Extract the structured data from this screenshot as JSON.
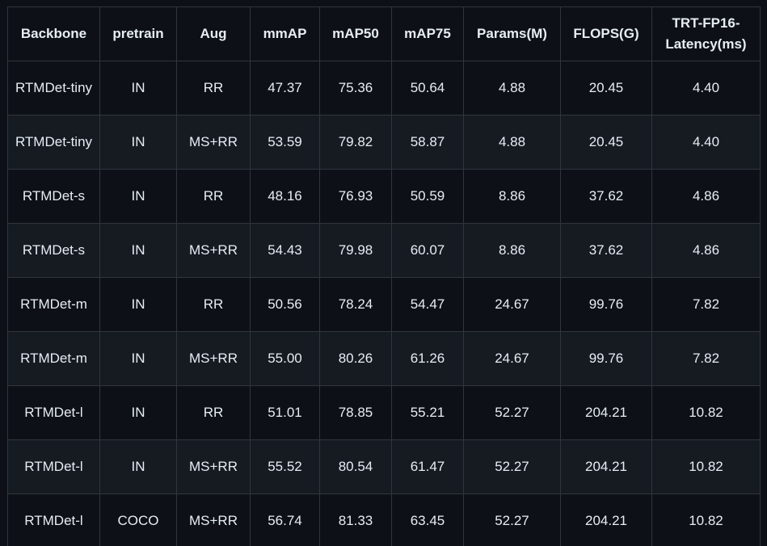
{
  "table": {
    "headers": [
      "Backbone",
      "pretrain",
      "Aug",
      "mmAP",
      "mAP50",
      "mAP75",
      "Params(M)",
      "FLOPS(G)",
      "TRT-FP16-Latency(ms)"
    ],
    "rows": [
      [
        "RTMDet-tiny",
        "IN",
        "RR",
        "47.37",
        "75.36",
        "50.64",
        "4.88",
        "20.45",
        "4.40"
      ],
      [
        "RTMDet-tiny",
        "IN",
        "MS+RR",
        "53.59",
        "79.82",
        "58.87",
        "4.88",
        "20.45",
        "4.40"
      ],
      [
        "RTMDet-s",
        "IN",
        "RR",
        "48.16",
        "76.93",
        "50.59",
        "8.86",
        "37.62",
        "4.86"
      ],
      [
        "RTMDet-s",
        "IN",
        "MS+RR",
        "54.43",
        "79.98",
        "60.07",
        "8.86",
        "37.62",
        "4.86"
      ],
      [
        "RTMDet-m",
        "IN",
        "RR",
        "50.56",
        "78.24",
        "54.47",
        "24.67",
        "99.76",
        "7.82"
      ],
      [
        "RTMDet-m",
        "IN",
        "MS+RR",
        "55.00",
        "80.26",
        "61.26",
        "24.67",
        "99.76",
        "7.82"
      ],
      [
        "RTMDet-l",
        "IN",
        "RR",
        "51.01",
        "78.85",
        "55.21",
        "52.27",
        "204.21",
        "10.82"
      ],
      [
        "RTMDet-l",
        "IN",
        "MS+RR",
        "55.52",
        "80.54",
        "61.47",
        "52.27",
        "204.21",
        "10.82"
      ],
      [
        "RTMDet-l",
        "COCO",
        "MS+RR",
        "56.74",
        "81.33",
        "63.45",
        "52.27",
        "204.21",
        "10.82"
      ]
    ]
  }
}
